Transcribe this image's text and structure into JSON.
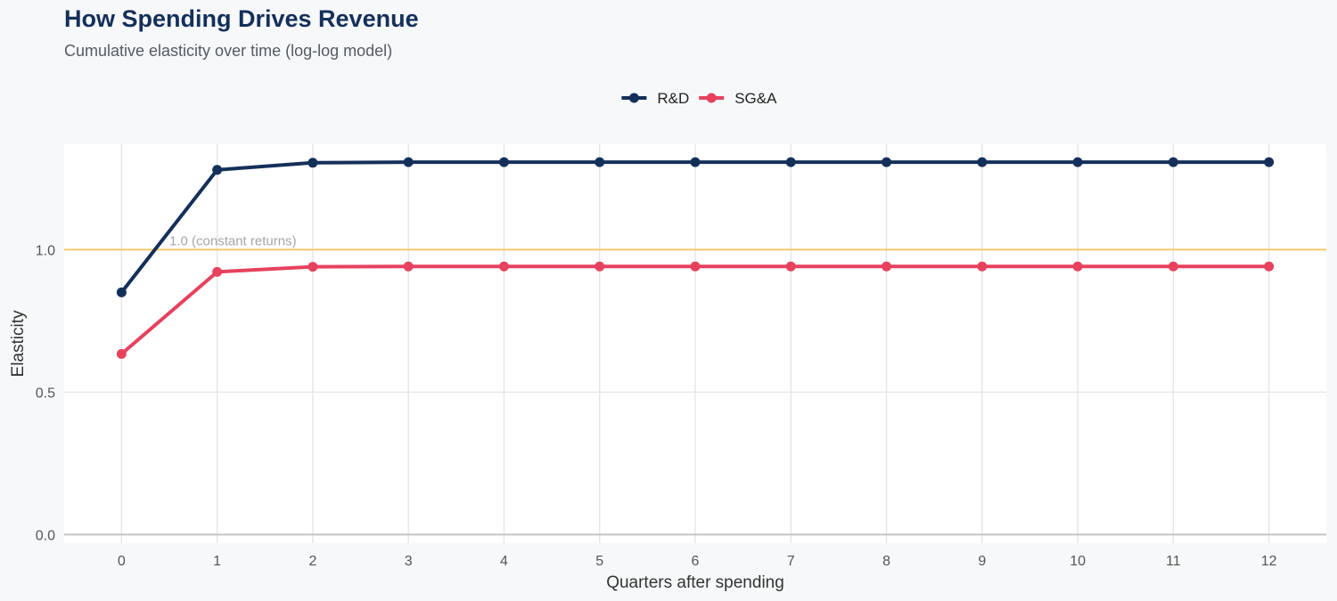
{
  "chart_data": {
    "type": "line",
    "title": "How Spending Drives Revenue",
    "subtitle": "Cumulative elasticity over time (log-log model)",
    "xlabel": "Quarters after spending",
    "ylabel": "Elasticity",
    "x": [
      0,
      1,
      2,
      3,
      4,
      5,
      6,
      7,
      8,
      9,
      10,
      11,
      12
    ],
    "xlim": [
      -0.6,
      12.6
    ],
    "ylim": [
      -0.03,
      1.37
    ],
    "yticks": [
      0.0,
      0.5,
      1.0
    ],
    "ytick_labels": [
      "0.0",
      "0.5",
      "1.0"
    ],
    "grid": true,
    "legend_position": "top-center",
    "series": [
      {
        "name": "R&D",
        "color": "#14305a",
        "values": [
          0.85,
          1.28,
          1.305,
          1.307,
          1.307,
          1.307,
          1.307,
          1.307,
          1.307,
          1.307,
          1.307,
          1.307,
          1.307
        ]
      },
      {
        "name": "SG&A",
        "color": "#e6425e",
        "values": [
          0.634,
          0.922,
          0.94,
          0.941,
          0.941,
          0.941,
          0.941,
          0.941,
          0.941,
          0.941,
          0.941,
          0.941,
          0.941
        ]
      }
    ],
    "reference_line": {
      "y": 1.0,
      "label": "1.0 (constant returns)",
      "color": "#f5c96a"
    }
  }
}
